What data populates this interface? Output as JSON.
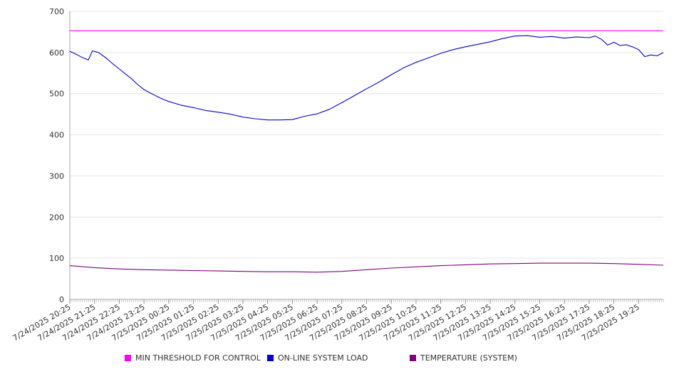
{
  "chart_data": {
    "type": "line",
    "title": "",
    "xlabel": "",
    "ylabel": "",
    "ylim": [
      0,
      700
    ],
    "yticks": [
      0,
      100,
      200,
      300,
      400,
      500,
      600,
      700
    ],
    "grid": true,
    "legend_position": "bottom",
    "x_tick_labels": [
      "7/24/2025 20:25",
      "7/24/2025 21:25",
      "7/24/2025 22:25",
      "7/24/2025 23:25",
      "7/25/2025 00:25",
      "7/25/2025 01:25",
      "7/25/2025 02:25",
      "7/25/2025 03:25",
      "7/25/2025 04:25",
      "7/25/2025 05:25",
      "7/25/2025 06:25",
      "7/25/2025 07:25",
      "7/25/2025 08:25",
      "7/25/2025 09:25",
      "7/25/2025 10:25",
      "7/25/2025 11:25",
      "7/25/2025 12:25",
      "7/25/2025 13:25",
      "7/25/2025 14:25",
      "7/25/2025 15:25",
      "7/25/2025 16:25",
      "7/25/2025 17:25",
      "7/25/2025 18:25",
      "7/25/2025 19:25"
    ],
    "series": [
      {
        "name": "MIN THRESHOLD FOR CONTROL",
        "color": "#ff00ff",
        "points": [
          [
            "7/24/2025 20:25",
            653
          ],
          [
            "7/25/2025 20:25",
            653
          ]
        ]
      },
      {
        "name": "ON-LINE SYSTEM LOAD",
        "color": "#0000dd",
        "points": [
          [
            "7/24/2025 20:25",
            603
          ],
          [
            "7/24/2025 20:40",
            596
          ],
          [
            "7/24/2025 20:55",
            588
          ],
          [
            "7/24/2025 21:10",
            582
          ],
          [
            "7/24/2025 21:20",
            604
          ],
          [
            "7/24/2025 21:35",
            600
          ],
          [
            "7/24/2025 21:55",
            585
          ],
          [
            "7/24/2025 22:10",
            572
          ],
          [
            "7/24/2025 22:25",
            560
          ],
          [
            "7/24/2025 22:40",
            548
          ],
          [
            "7/24/2025 22:55",
            536
          ],
          [
            "7/24/2025 23:10",
            522
          ],
          [
            "7/24/2025 23:25",
            510
          ],
          [
            "7/24/2025 23:40",
            502
          ],
          [
            "7/24/2025 23:55",
            494
          ],
          [
            "7/25/2025 00:10",
            487
          ],
          [
            "7/25/2025 00:25",
            481
          ],
          [
            "7/25/2025 00:55",
            472
          ],
          [
            "7/25/2025 01:25",
            466
          ],
          [
            "7/25/2025 01:55",
            459
          ],
          [
            "7/25/2025 02:25",
            455
          ],
          [
            "7/25/2025 02:55",
            450
          ],
          [
            "7/25/2025 03:25",
            443
          ],
          [
            "7/25/2025 03:55",
            439
          ],
          [
            "7/25/2025 04:25",
            436
          ],
          [
            "7/25/2025 04:55",
            436
          ],
          [
            "7/25/2025 05:25",
            437
          ],
          [
            "7/25/2025 05:55",
            445
          ],
          [
            "7/25/2025 06:25",
            451
          ],
          [
            "7/25/2025 06:55",
            462
          ],
          [
            "7/25/2025 07:25",
            478
          ],
          [
            "7/25/2025 07:55",
            495
          ],
          [
            "7/25/2025 08:25",
            512
          ],
          [
            "7/25/2025 08:55",
            528
          ],
          [
            "7/25/2025 09:25",
            546
          ],
          [
            "7/25/2025 09:55",
            563
          ],
          [
            "7/25/2025 10:25",
            576
          ],
          [
            "7/25/2025 10:55",
            587
          ],
          [
            "7/25/2025 11:25",
            598
          ],
          [
            "7/25/2025 11:55",
            607
          ],
          [
            "7/25/2025 12:25",
            614
          ],
          [
            "7/25/2025 12:55",
            620
          ],
          [
            "7/25/2025 13:25",
            626
          ],
          [
            "7/25/2025 13:55",
            634
          ],
          [
            "7/25/2025 14:25",
            640
          ],
          [
            "7/25/2025 14:55",
            641
          ],
          [
            "7/25/2025 15:25",
            637
          ],
          [
            "7/25/2025 15:55",
            639
          ],
          [
            "7/25/2025 16:25",
            635
          ],
          [
            "7/25/2025 16:55",
            638
          ],
          [
            "7/25/2025 17:25",
            636
          ],
          [
            "7/25/2025 17:40",
            640
          ],
          [
            "7/25/2025 17:55",
            632
          ],
          [
            "7/25/2025 18:10",
            618
          ],
          [
            "7/25/2025 18:25",
            625
          ],
          [
            "7/25/2025 18:40",
            617
          ],
          [
            "7/25/2025 18:55",
            619
          ],
          [
            "7/25/2025 19:10",
            614
          ],
          [
            "7/25/2025 19:25",
            607
          ],
          [
            "7/25/2025 19:40",
            590
          ],
          [
            "7/25/2025 19:55",
            594
          ],
          [
            "7/25/2025 20:10",
            592
          ],
          [
            "7/25/2025 20:25",
            600
          ]
        ]
      },
      {
        "name": "TEMPERATURE (SYSTEM)",
        "color": "#800080",
        "points": [
          [
            "7/24/2025 20:25",
            82
          ],
          [
            "7/24/2025 21:25",
            77
          ],
          [
            "7/24/2025 22:25",
            74
          ],
          [
            "7/24/2025 23:25",
            72
          ],
          [
            "7/25/2025 00:25",
            71
          ],
          [
            "7/25/2025 01:25",
            70
          ],
          [
            "7/25/2025 02:25",
            69
          ],
          [
            "7/25/2025 03:25",
            68
          ],
          [
            "7/25/2025 04:25",
            67
          ],
          [
            "7/25/2025 05:25",
            67
          ],
          [
            "7/25/2025 06:25",
            66
          ],
          [
            "7/25/2025 07:25",
            68
          ],
          [
            "7/25/2025 08:25",
            72
          ],
          [
            "7/25/2025 09:25",
            76
          ],
          [
            "7/25/2025 10:25",
            79
          ],
          [
            "7/25/2025 11:25",
            82
          ],
          [
            "7/25/2025 12:25",
            84
          ],
          [
            "7/25/2025 13:25",
            86
          ],
          [
            "7/25/2025 14:25",
            87
          ],
          [
            "7/25/2025 15:25",
            88
          ],
          [
            "7/25/2025 16:25",
            88
          ],
          [
            "7/25/2025 17:25",
            88
          ],
          [
            "7/25/2025 18:25",
            87
          ],
          [
            "7/25/2025 19:25",
            85
          ],
          [
            "7/25/2025 20:25",
            83
          ]
        ]
      }
    ]
  }
}
